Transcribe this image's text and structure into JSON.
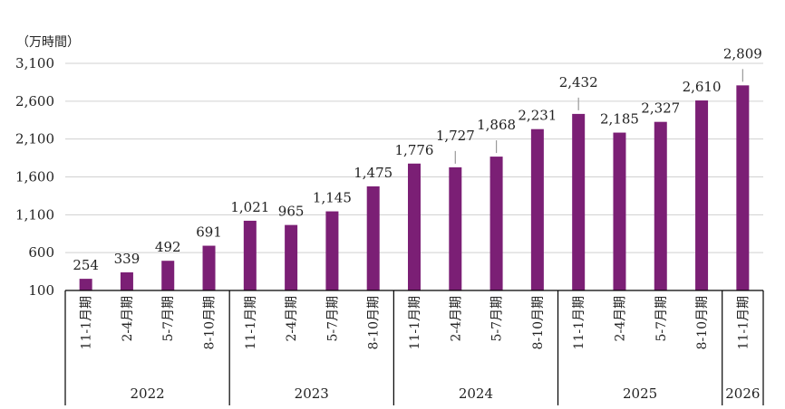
{
  "chart_data": {
    "type": "bar",
    "unit_label": "（万時間）",
    "ylim": [
      100,
      3100
    ],
    "yticks": [
      100,
      600,
      1100,
      1600,
      2100,
      2600,
      3100
    ],
    "ytick_labels": [
      "100",
      "600",
      "1,100",
      "1,600",
      "2,100",
      "2,600",
      "3,100"
    ],
    "grid": true,
    "bar_color": "#7b1f75",
    "categories": [
      "11-1月期",
      "2-4月期",
      "5-7月期",
      "8-10月期",
      "11-1月期",
      "2-4月期",
      "5-7月期",
      "8-10月期",
      "11-1月期",
      "2-4月期",
      "5-7月期",
      "8-10月期",
      "11-1月期",
      "2-4月期",
      "5-7月期",
      "8-10月期",
      "11-1月期"
    ],
    "values": [
      254,
      339,
      492,
      691,
      1021,
      965,
      1145,
      1475,
      1776,
      1727,
      1868,
      2231,
      2432,
      2185,
      2327,
      2610,
      2809
    ],
    "value_labels": [
      "254",
      "339",
      "492",
      "691",
      "1,021",
      "965",
      "1,145",
      "1,475",
      "1,776",
      "1,727",
      "1,868",
      "2,231",
      "2,432",
      "2,185",
      "2,327",
      "2,610",
      "2,809"
    ],
    "years": [
      {
        "label": "2022",
        "count": 4
      },
      {
        "label": "2023",
        "count": 4
      },
      {
        "label": "2024",
        "count": 4
      },
      {
        "label": "2025",
        "count": 4
      },
      {
        "label": "2026",
        "count": 1
      }
    ]
  }
}
